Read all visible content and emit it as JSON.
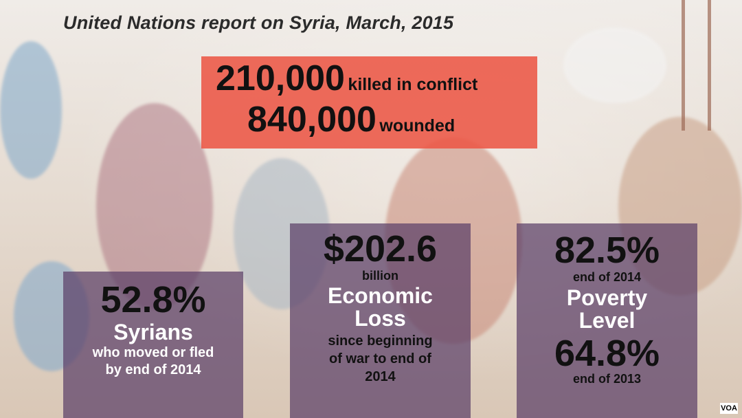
{
  "title": "United Nations report on Syria, March, 2015",
  "casualties": {
    "killed_number": "210,000",
    "killed_label": "killed in conflict",
    "wounded_number": "840,000",
    "wounded_label": "wounded"
  },
  "displaced": {
    "value": "52.8%",
    "heading": "Syrians",
    "line1": "who moved or fled",
    "line2": "by end of 2014"
  },
  "economic": {
    "value": "$202.6",
    "unit": "billion",
    "heading1": "Economic",
    "heading2": "Loss",
    "line1": "since beginning",
    "line2": "of war to end of",
    "line3": "2014"
  },
  "poverty": {
    "value_2014": "82.5%",
    "label_2014": "end of 2014",
    "heading1": "Poverty",
    "heading2": "Level",
    "value_2013": "64.8%",
    "label_2013": "end of 2013"
  },
  "logo": "VOA",
  "colors": {
    "red_panel": "#ec5646",
    "purple_panel": "#5c4068",
    "text_dark": "#111111",
    "text_light": "#ffffff"
  }
}
